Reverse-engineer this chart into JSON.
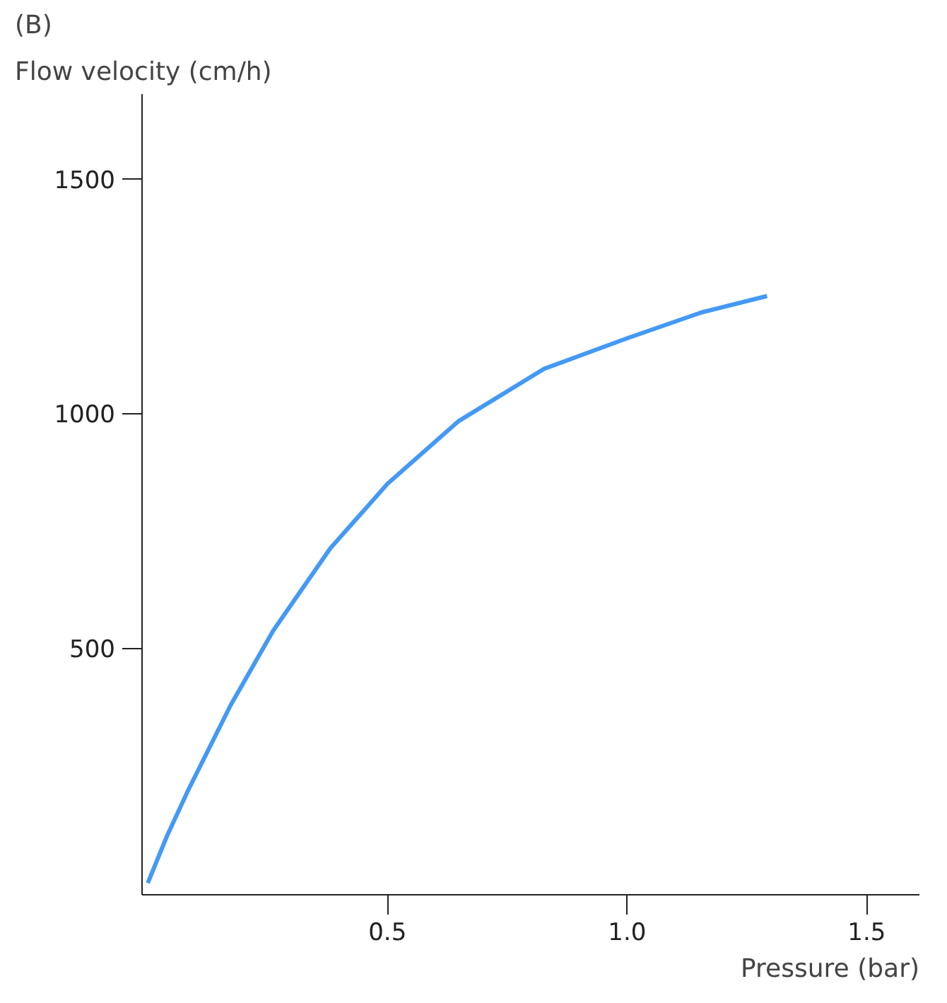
{
  "chart_data": {
    "type": "line",
    "title": "(B)",
    "ylabel": "Flow velocity (cm/h)",
    "xlabel": "Pressure (bar)",
    "x": [
      0,
      0.04,
      0.083,
      0.173,
      0.262,
      0.381,
      0.5,
      0.649,
      0.827,
      1.0,
      1.155,
      1.292
    ],
    "series": [
      {
        "color": "#4499f5",
        "values": [
          0,
          100,
          195,
          379,
          538,
          713,
          850,
          984,
          1095,
          1160,
          1215,
          1250
        ]
      }
    ],
    "xlim": [
      -0.012,
      1.61
    ],
    "ylim": [
      -25,
      1680
    ],
    "xticks": [
      0.5,
      {
        "value": 1.0,
        "label": "1.0"
      },
      1.5
    ],
    "yticks": [
      500,
      1000,
      1500
    ],
    "marker": "none",
    "line_style": "solid"
  }
}
